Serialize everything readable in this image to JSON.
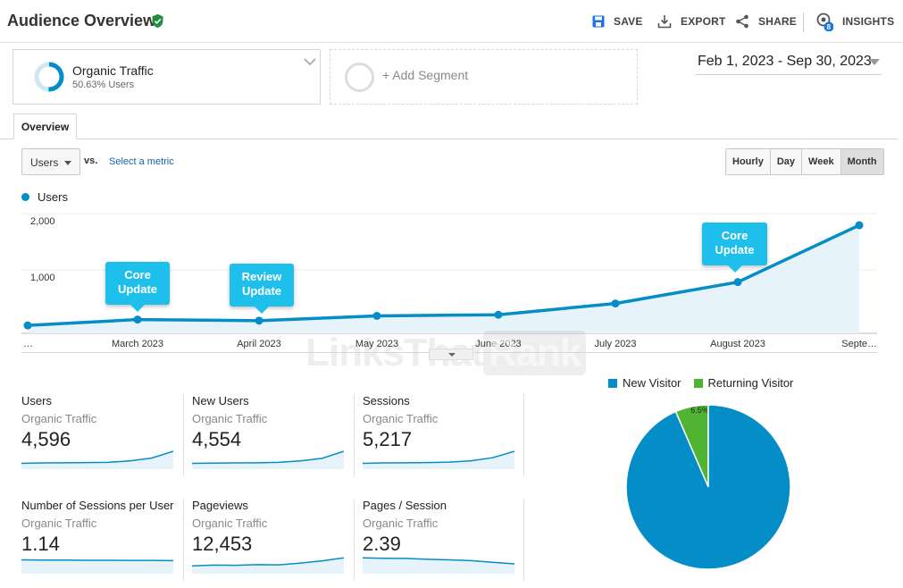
{
  "header": {
    "title": "Audience Overview",
    "save": "SAVE",
    "export": "EXPORT",
    "share": "SHARE",
    "insights": "INSIGHTS",
    "insights_badge": "8"
  },
  "segments": {
    "active_name": "Organic Traffic",
    "active_sub": "50.63% Users",
    "active_percent": 50.63,
    "add_label": "+ Add Segment"
  },
  "date_range": "Feb 1, 2023 - Sep 30, 2023",
  "tabs": [
    "Overview"
  ],
  "metric_select": {
    "value": "Users",
    "vs": "vs.",
    "select_metric": "Select a metric"
  },
  "granularity": {
    "options": [
      "Hourly",
      "Day",
      "Week",
      "Month"
    ],
    "active": "Month"
  },
  "chart_legend": "Users",
  "colors": {
    "series": "#058dc7",
    "new_visitor": "#058dc7",
    "returning_visitor": "#50b432",
    "callout": "#1fbfeb"
  },
  "chart_data": [
    {
      "type": "area",
      "series": [
        {
          "name": "Users",
          "values": [
            140,
            245,
            225,
            310,
            330,
            530,
            910,
            1920
          ]
        }
      ],
      "categories": [
        "…",
        "March 2023",
        "April 2023",
        "May 2023",
        "June 2023",
        "July 2023",
        "August 2023",
        "Septe…"
      ],
      "yticks": [
        "2,000",
        "1,000"
      ],
      "ylim": [
        0,
        2000
      ],
      "annotations": [
        {
          "label": "Core Update",
          "category": "March 2023"
        },
        {
          "label": "Review Update",
          "category": "April 2023"
        },
        {
          "label": "Core Update",
          "category": "August 2023"
        }
      ],
      "grid": true
    },
    {
      "type": "pie",
      "slices": [
        {
          "name": "New Visitor",
          "value": 93.5,
          "label": "93.5%"
        },
        {
          "name": "Returning Visitor",
          "value": 6.5,
          "label": "6.5%"
        }
      ],
      "legend": "top"
    }
  ],
  "watermark": {
    "part1": "LinksThat",
    "part2": "Rank"
  },
  "metrics": [
    {
      "title": "Users",
      "segment": "Organic Traffic",
      "value": "4,596",
      "spark": [
        2,
        2.2,
        2.3,
        2.4,
        2.5,
        3.2,
        4.6,
        8.0
      ]
    },
    {
      "title": "New Users",
      "segment": "Organic Traffic",
      "value": "4,554",
      "spark": [
        2,
        2.1,
        2.2,
        2.3,
        2.5,
        3.2,
        4.5,
        8.0
      ]
    },
    {
      "title": "Sessions",
      "segment": "Organic Traffic",
      "value": "5,217",
      "spark": [
        2,
        2.2,
        2.3,
        2.4,
        2.6,
        3.3,
        4.8,
        8.0
      ]
    },
    {
      "title": "Number of Sessions per User",
      "segment": "Organic Traffic",
      "value": "1.14",
      "spark": [
        6,
        5.9,
        5.9,
        5.8,
        5.8,
        5.7,
        5.7,
        5.6
      ]
    },
    {
      "title": "Pageviews",
      "segment": "Organic Traffic",
      "value": "12,453",
      "spark": [
        3,
        3.4,
        3.3,
        3.6,
        3.5,
        4.4,
        5.5,
        7.0
      ]
    },
    {
      "title": "Pages / Session",
      "segment": "Organic Traffic",
      "value": "2.39",
      "spark": [
        7,
        6.8,
        6.7,
        6.3,
        6.0,
        5.6,
        4.8,
        4.0
      ]
    }
  ]
}
